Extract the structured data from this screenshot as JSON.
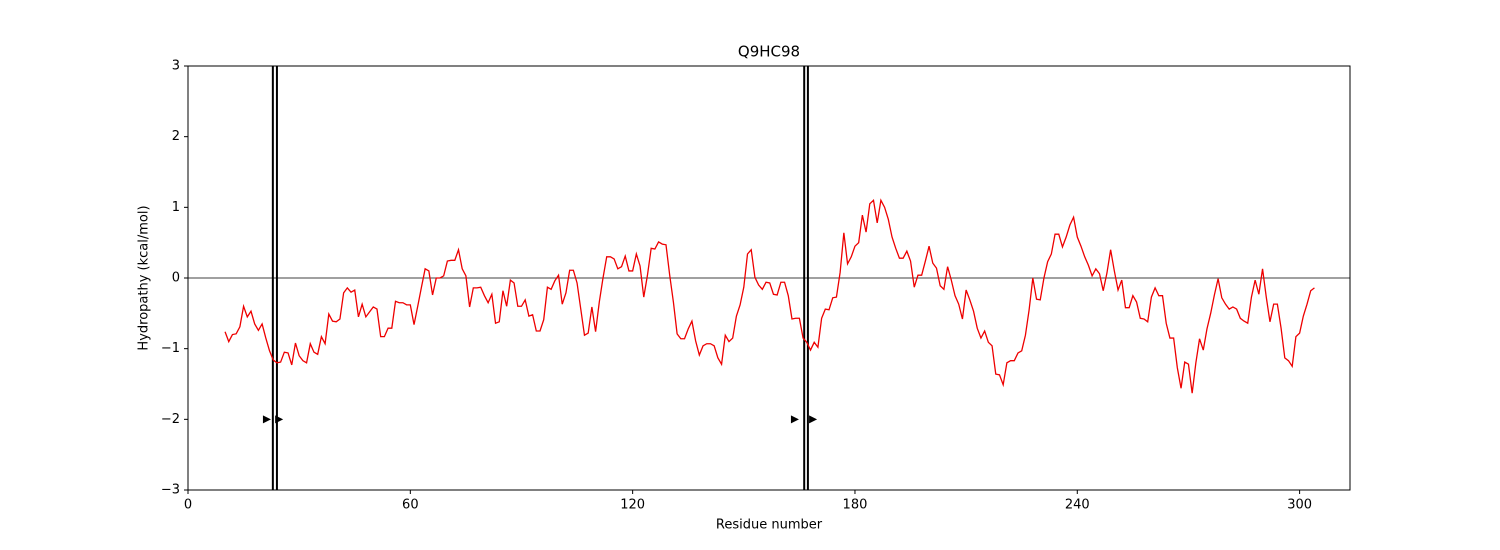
{
  "chart_data": {
    "type": "line",
    "title": "Q9HC98",
    "x_label": "Residue number",
    "y_label": "Hydropathy (kcal/mol)",
    "xlim": [
      0,
      313.6
    ],
    "ylim": [
      -3,
      3
    ],
    "xticks": [
      0,
      60,
      120,
      180,
      240,
      300
    ],
    "yticks": [
      {
        "value": -3,
        "label": "−3"
      },
      {
        "value": -2,
        "label": "−2"
      },
      {
        "value": -1,
        "label": "−1"
      },
      0,
      1,
      2,
      3
    ],
    "hline": 0,
    "vlines": [
      22.9,
      24.0,
      166.3,
      167.3
    ],
    "markers": {
      "color": "#000000",
      "x": [
        21.3,
        24.6,
        163.8,
        168.7
      ],
      "y": [
        -2,
        -2,
        -2,
        -2
      ]
    },
    "x": [
      10,
      11,
      12,
      13,
      14,
      15,
      16,
      17,
      18,
      19,
      20,
      21,
      22,
      23,
      24,
      25,
      26,
      27,
      28,
      29,
      30,
      31,
      32,
      33,
      34,
      35,
      36,
      37,
      38,
      39,
      40,
      41,
      42,
      43,
      44,
      45,
      46,
      47,
      48,
      49,
      50,
      51,
      52,
      53,
      54,
      55,
      56,
      57,
      58,
      59,
      60,
      61,
      62,
      63,
      64,
      65,
      66,
      67,
      68,
      69,
      70,
      71,
      72,
      73,
      74,
      75,
      76,
      77,
      78,
      79,
      80,
      81,
      82,
      83,
      84,
      85,
      86,
      87,
      88,
      89,
      90,
      91,
      92,
      93,
      94,
      95,
      96,
      97,
      98,
      99,
      100,
      101,
      102,
      103,
      104,
      105,
      106,
      107,
      108,
      109,
      110,
      111,
      112,
      113,
      114,
      115,
      116,
      117,
      118,
      119,
      120,
      121,
      122,
      123,
      124,
      125,
      126,
      127,
      128,
      129,
      130,
      131,
      132,
      133,
      134,
      135,
      136,
      137,
      138,
      139,
      140,
      141,
      142,
      143,
      144,
      145,
      146,
      147,
      148,
      149,
      150,
      151,
      152,
      153,
      154,
      155,
      156,
      157,
      158,
      159,
      160,
      161,
      162,
      163,
      164,
      165,
      166,
      167,
      168,
      169,
      170,
      171,
      172,
      173,
      174,
      175,
      176,
      177,
      178,
      179,
      180,
      181,
      182,
      183,
      184,
      185,
      186,
      187,
      188,
      189,
      190,
      191,
      192,
      193,
      194,
      195,
      196,
      197,
      198,
      199,
      200,
      201,
      202,
      203,
      204,
      205,
      206,
      207,
      208,
      209,
      210,
      211,
      212,
      213,
      214,
      215,
      216,
      217,
      218,
      219,
      220,
      221,
      222,
      223,
      224,
      225,
      226,
      227,
      228,
      229,
      230,
      231,
      232,
      233,
      234,
      235,
      236,
      237,
      238,
      239,
      240,
      241,
      242,
      243,
      244,
      245,
      246,
      247,
      248,
      249,
      250,
      251,
      252,
      253,
      254,
      255,
      256,
      257,
      258,
      259,
      260,
      261,
      262,
      263,
      264,
      265,
      266,
      267,
      268,
      269,
      270,
      271,
      272,
      273,
      274,
      275,
      276,
      277,
      278,
      279,
      280,
      281,
      282,
      283,
      284,
      285,
      286,
      287,
      288,
      289,
      290,
      291,
      292,
      293,
      294,
      295,
      296,
      297,
      298,
      299,
      300,
      301,
      302,
      303,
      304
    ],
    "series": [
      {
        "color": "#ee0000",
        "values": [
          -0.76,
          -0.9,
          -0.8,
          -0.79,
          -0.69,
          -0.4,
          -0.55,
          -0.47,
          -0.65,
          -0.74,
          -0.65,
          -0.85,
          -1.03,
          -1.16,
          -1.2,
          -1.19,
          -1.05,
          -1.06,
          -1.23,
          -0.92,
          -1.1,
          -1.17,
          -1.2,
          -0.93,
          -1.05,
          -1.08,
          -0.83,
          -0.93,
          -0.51,
          -0.61,
          -0.62,
          -0.58,
          -0.21,
          -0.14,
          -0.2,
          -0.17,
          -0.55,
          -0.37,
          -0.55,
          -0.48,
          -0.41,
          -0.44,
          -0.83,
          -0.83,
          -0.71,
          -0.71,
          -0.33,
          -0.35,
          -0.35,
          -0.38,
          -0.38,
          -0.66,
          -0.4,
          -0.13,
          0.13,
          0.1,
          -0.24,
          0,
          0,
          0.03,
          0.24,
          0.25,
          0.25,
          0.4,
          0.13,
          0.03,
          -0.41,
          -0.14,
          -0.14,
          -0.13,
          -0.25,
          -0.35,
          -0.23,
          -0.64,
          -0.62,
          -0.18,
          -0.4,
          -0.03,
          -0.07,
          -0.4,
          -0.4,
          -0.31,
          -0.54,
          -0.52,
          -0.75,
          -0.75,
          -0.59,
          -0.13,
          -0.16,
          -0.04,
          0.04,
          -0.37,
          -0.21,
          0.11,
          0.11,
          -0.07,
          -0.44,
          -0.81,
          -0.78,
          -0.41,
          -0.76,
          -0.34,
          0,
          0.3,
          0.3,
          0.27,
          0.13,
          0.16,
          0.31,
          0.1,
          0.1,
          0.34,
          0.17,
          -0.27,
          0.04,
          0.42,
          0.41,
          0.51,
          0.48,
          0.47,
          0.04,
          -0.34,
          -0.79,
          -0.86,
          -0.86,
          -0.72,
          -0.61,
          -0.89,
          -1.09,
          -0.96,
          -0.93,
          -0.93,
          -0.96,
          -1.13,
          -1.22,
          -0.81,
          -0.9,
          -0.85,
          -0.54,
          -0.38,
          -0.13,
          0.34,
          0.4,
          0.01,
          -0.1,
          -0.16,
          -0.06,
          -0.07,
          -0.23,
          -0.24,
          -0.06,
          -0.06,
          -0.25,
          -0.58,
          -0.57,
          -0.57,
          -0.85,
          -0.91,
          -1.02,
          -0.91,
          -0.98,
          -0.57,
          -0.44,
          -0.45,
          -0.28,
          -0.27,
          0.08,
          0.64,
          0.2,
          0.3,
          0.45,
          0.5,
          0.89,
          0.65,
          1.05,
          1.1,
          0.78,
          1.1,
          1.0,
          0.83,
          0.58,
          0.42,
          0.28,
          0.28,
          0.38,
          0.24,
          -0.13,
          0.04,
          0.04,
          0.24,
          0.45,
          0.21,
          0.14,
          -0.11,
          -0.16,
          0.16,
          -0.03,
          -0.25,
          -0.37,
          -0.58,
          -0.17,
          -0.31,
          -0.47,
          -0.71,
          -0.85,
          -0.75,
          -0.91,
          -0.96,
          -1.36,
          -1.37,
          -1.51,
          -1.2,
          -1.17,
          -1.17,
          -1.06,
          -1.03,
          -0.81,
          -0.45,
          0,
          -0.3,
          -0.31,
          0,
          0.23,
          0.34,
          0.62,
          0.62,
          0.44,
          0.58,
          0.75,
          0.86,
          0.58,
          0.45,
          0.3,
          0.18,
          0.03,
          0.13,
          0.06,
          -0.18,
          0.07,
          0.4,
          0.1,
          -0.17,
          -0.03,
          -0.42,
          -0.42,
          -0.25,
          -0.34,
          -0.57,
          -0.58,
          -0.62,
          -0.27,
          -0.14,
          -0.25,
          -0.25,
          -0.64,
          -0.85,
          -0.85,
          -1.27,
          -1.56,
          -1.19,
          -1.22,
          -1.63,
          -1.2,
          -0.86,
          -1.02,
          -0.72,
          -0.5,
          -0.24,
          -0.01,
          -0.28,
          -0.37,
          -0.44,
          -0.41,
          -0.44,
          -0.57,
          -0.61,
          -0.64,
          -0.27,
          -0.03,
          -0.23,
          0.13,
          -0.27,
          -0.62,
          -0.37,
          -0.37,
          -0.71,
          -1.13,
          -1.17,
          -1.25,
          -0.83,
          -0.78,
          -0.54,
          -0.37,
          -0.18,
          -0.14
        ]
      }
    ]
  }
}
